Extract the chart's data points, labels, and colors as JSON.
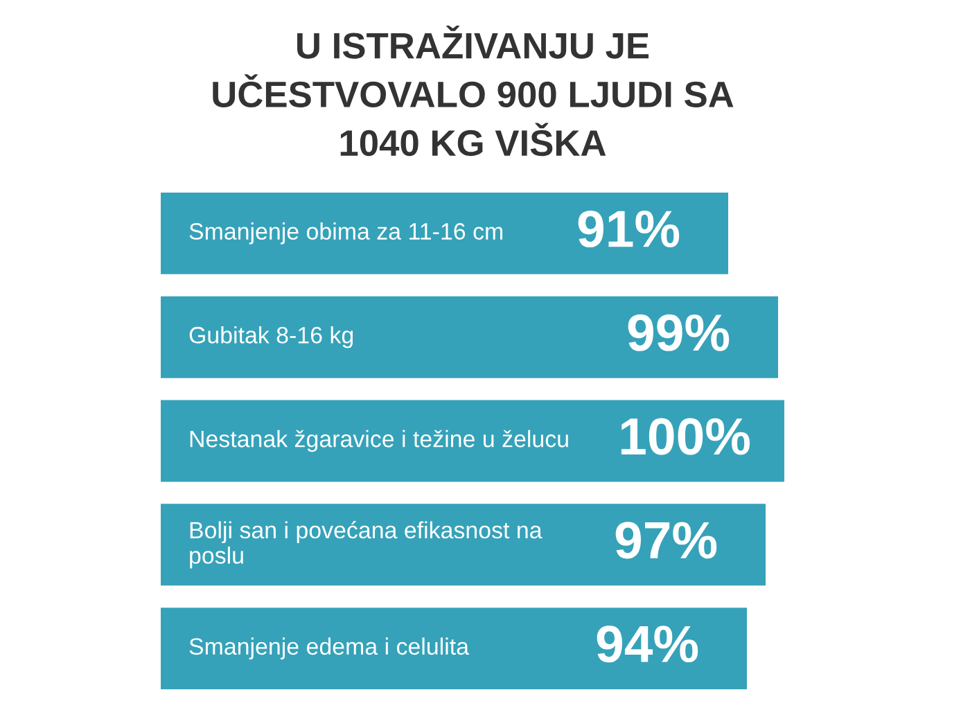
{
  "chart_data": {
    "type": "bar",
    "orientation": "horizontal",
    "title": "U ISTRAŽIVANJU JE UČESTVOVALO 900 LJUDI SA 1040 KG VIŠKA",
    "categories": [
      "Smanjenje obima za 11-16 cm",
      "Gubitak 8-16 kg",
      "Nestanak žgaravice i težine u želucu",
      "Bolji san i povećana efikasnost na poslu",
      "Smanjenje edema i celulita"
    ],
    "values": [
      91,
      99,
      100,
      97,
      94
    ],
    "value_labels": [
      "91%",
      "99%",
      "100%",
      "97%",
      "94%"
    ],
    "color": "#35a2b9",
    "xlim": [
      0,
      100
    ],
    "tick_labels": "y"
  }
}
